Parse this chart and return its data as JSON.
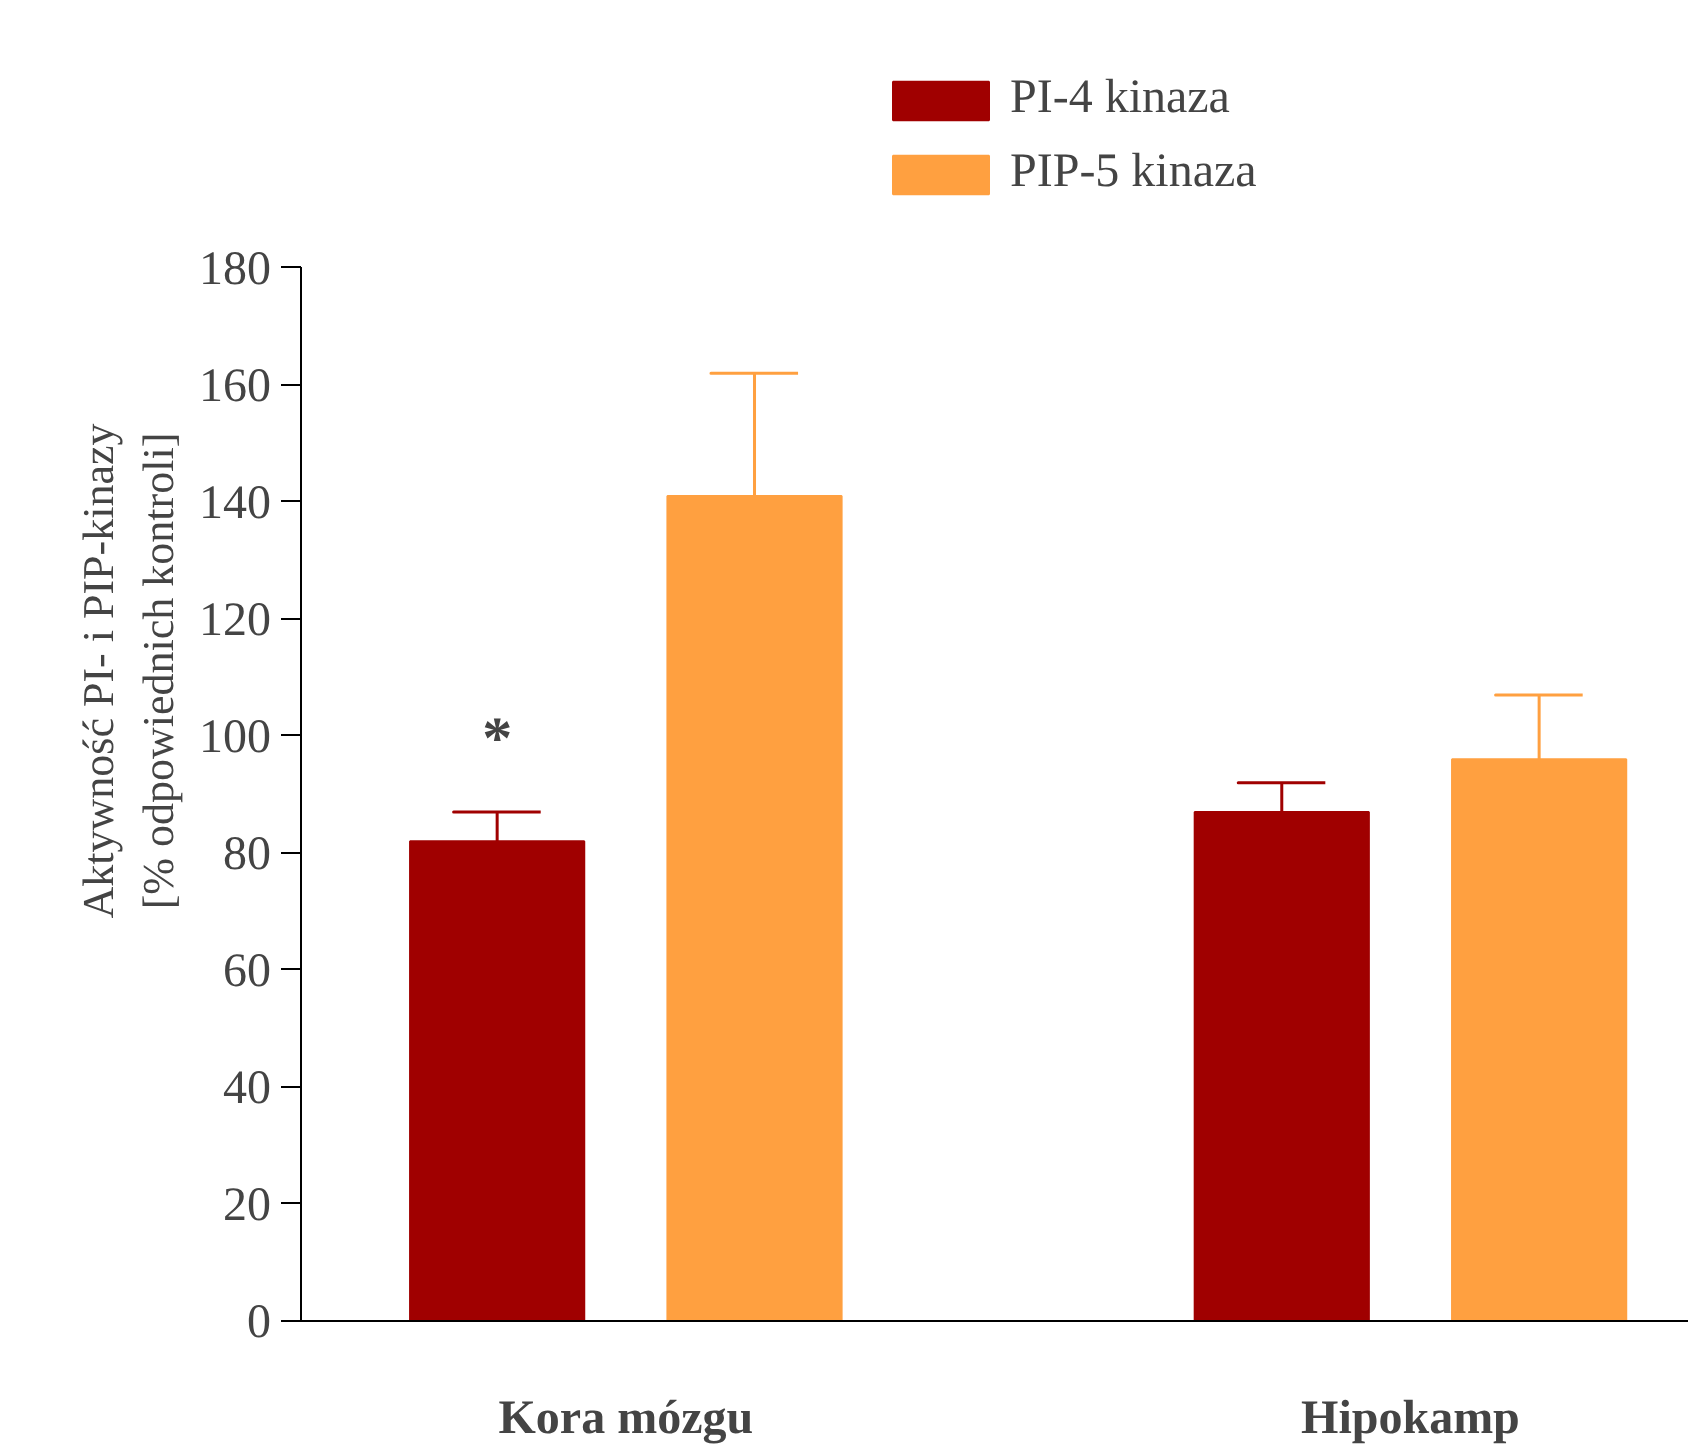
{
  "chart_data": {
    "type": "bar",
    "categories": [
      "Kora mózgu",
      "Hipokamp"
    ],
    "ylabel": "Aktywność PI- i PIP-kinazy\n[% odpowiednich kontroli]",
    "series": [
      {
        "name": "PI-4 kinaza",
        "color": "#a00000",
        "values": [
          82,
          87
        ],
        "errors": [
          [
            82,
            87
          ],
          [
            87,
            92
          ]
        ]
      },
      {
        "name": "PIP-5 kinaza",
        "color": "#ffa040",
        "values": [
          141,
          96
        ],
        "errors": [
          [
            141,
            162
          ],
          [
            96,
            107
          ]
        ]
      }
    ],
    "ylim": [
      0,
      180
    ],
    "yticks": [
      0,
      20,
      40,
      60,
      80,
      100,
      120,
      140,
      160,
      180
    ],
    "annotations": [
      "*"
    ],
    "grid": false,
    "legend": "top right"
  }
}
